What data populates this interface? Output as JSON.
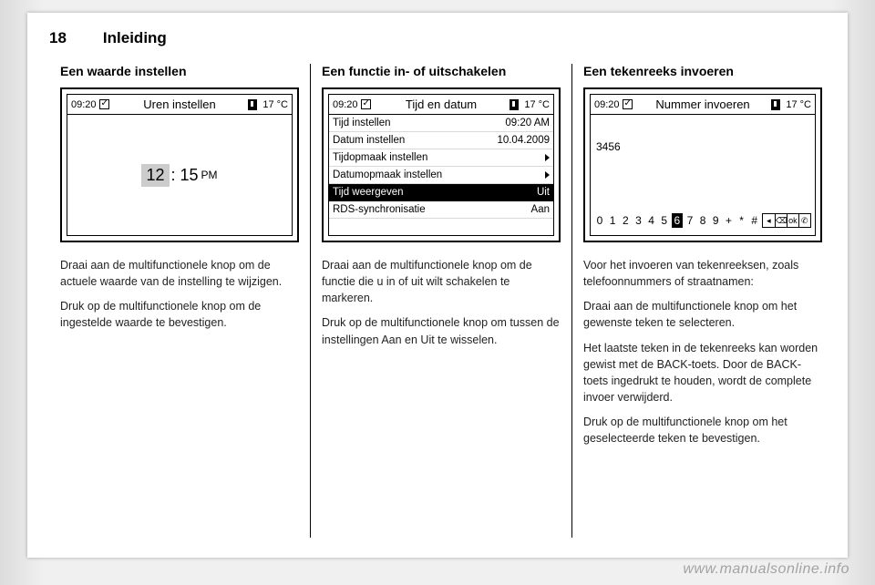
{
  "header": {
    "page_number": "18",
    "chapter_title": "Inleiding"
  },
  "columns": [
    {
      "title": "Een waarde instellen",
      "screen": {
        "status": {
          "time": "09:20",
          "title": "Uren instellen",
          "temp": "17 °C"
        },
        "type": "value",
        "value": {
          "hour_sel": "12",
          "rest": ": 15",
          "ampm": "PM"
        }
      },
      "paragraphs": [
        "Draai aan de multifunctionele knop om de actuele waarde van de instelling te wijzigen.",
        "Druk op de multifunctionele knop om de ingestelde waarde te bevestigen."
      ]
    },
    {
      "title": "Een functie in- of uitschakelen",
      "screen": {
        "status": {
          "time": "09:20",
          "title": "Tijd en datum",
          "temp": "17 °C"
        },
        "type": "list",
        "rows": [
          {
            "label": "Tijd instellen",
            "value": "09:20 AM",
            "selected": false,
            "arrow": false
          },
          {
            "label": "Datum instellen",
            "value": "10.04.2009",
            "selected": false,
            "arrow": false
          },
          {
            "label": "Tijdopmaak instellen",
            "value": "",
            "selected": false,
            "arrow": true
          },
          {
            "label": "Datumopmaak instellen",
            "value": "",
            "selected": false,
            "arrow": true
          },
          {
            "label": "Tijd weergeven",
            "value": "Uit",
            "selected": true,
            "arrow": false
          },
          {
            "label": "RDS-synchronisatie",
            "value": "Aan",
            "selected": false,
            "arrow": false
          }
        ]
      },
      "paragraphs": [
        "Draai aan de multifunctionele knop om de functie die u in of uit wilt schakelen te markeren.",
        "Druk op de multifunctionele knop om tussen de instellingen Aan en Uit te wisselen."
      ]
    },
    {
      "title": "Een tekenreeks invoeren",
      "screen": {
        "status": {
          "time": "09:20",
          "title": "Nummer invoeren",
          "temp": "17 °C"
        },
        "type": "input",
        "entered": "3456",
        "digits": [
          "0",
          "1",
          "2",
          "3",
          "4",
          "5",
          "6",
          "7",
          "8",
          "9",
          "+",
          "*",
          "#"
        ],
        "selected_index": 6,
        "icons": [
          "◂",
          "⌫",
          "ok",
          "✆"
        ]
      },
      "paragraphs": [
        "Voor het invoeren van tekenreeksen, zoals telefoonnummers of straatnamen:",
        "Draai aan de multifunctionele knop om het gewenste teken te selecteren.",
        "Het laatste teken in de tekenreeks kan worden gewist met de BACK-toets. Door de BACK-toets ingedrukt te houden, wordt de complete invoer verwijderd.",
        "Druk op de multifunctionele knop om het geselecteerde teken te bevestigen."
      ]
    }
  ],
  "watermark": "www.manualsonline.info",
  "colors": {
    "page_bg": "#ffffff",
    "text": "#222222",
    "border": "#000000",
    "highlight_bg": "#000000",
    "highlight_fg": "#ffffff",
    "value_sel_bg": "#cccccc"
  }
}
